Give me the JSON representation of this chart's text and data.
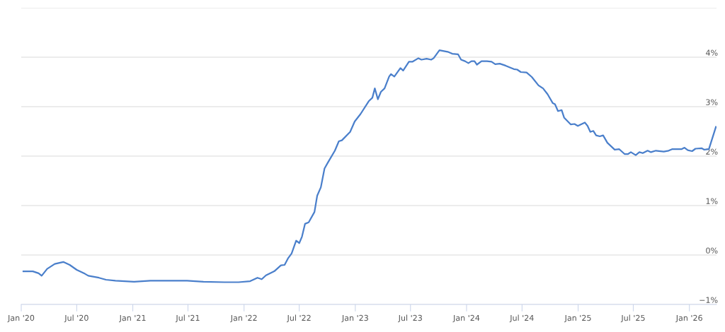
{
  "chart_data": {
    "type": "line",
    "xlim": [
      "2020-01-01",
      "2026-03-31"
    ],
    "ylim": [
      -1,
      5
    ],
    "xticks": [
      {
        "value": "2020-01-01",
        "label": "Jan '20"
      },
      {
        "value": "2020-07-01",
        "label": "Jul '20"
      },
      {
        "value": "2021-01-01",
        "label": "Jan '21"
      },
      {
        "value": "2021-07-01",
        "label": "Jul '21"
      },
      {
        "value": "2022-01-01",
        "label": "Jan '22"
      },
      {
        "value": "2022-07-01",
        "label": "Jul '22"
      },
      {
        "value": "2023-01-01",
        "label": "Jan '23"
      },
      {
        "value": "2023-07-01",
        "label": "Jul '23"
      },
      {
        "value": "2024-01-01",
        "label": "Jan '24"
      },
      {
        "value": "2024-07-01",
        "label": "Jul '24"
      },
      {
        "value": "2025-01-01",
        "label": "Jan '25"
      },
      {
        "value": "2025-07-01",
        "label": "Jul '25"
      },
      {
        "value": "2026-01-01",
        "label": "Jan '26"
      }
    ],
    "yticks": [
      {
        "value": -1,
        "label": "−1%"
      },
      {
        "value": 0,
        "label": "0%"
      },
      {
        "value": 1,
        "label": "1%"
      },
      {
        "value": 2,
        "label": "2%"
      },
      {
        "value": 3,
        "label": "3%"
      },
      {
        "value": 4,
        "label": "4%"
      },
      {
        "value": 5,
        "label": null
      }
    ],
    "grid": "y",
    "marker": "none",
    "line_style": "solid",
    "series": [
      {
        "color": "#4a7fcb",
        "x": [
          "2020-01-08",
          "2020-02-08",
          "2020-02-27",
          "2020-03-08",
          "2020-03-26",
          "2020-04-20",
          "2020-05-18",
          "2020-06-08",
          "2020-07-01",
          "2020-07-28",
          "2020-08-08",
          "2020-09-12",
          "2020-10-05",
          "2020-11-05",
          "2021-01-05",
          "2021-02-28",
          "2021-05-12",
          "2021-06-28",
          "2021-08-21",
          "2021-10-29",
          "2021-12-14",
          "2022-01-21",
          "2022-02-14",
          "2022-02-28",
          "2022-03-14",
          "2022-04-10",
          "2022-05-02",
          "2022-05-14",
          "2022-05-25",
          "2022-06-06",
          "2022-06-21",
          "2022-07-01",
          "2022-07-10",
          "2022-07-20",
          "2022-08-01",
          "2022-08-20",
          "2022-08-29",
          "2022-09-10",
          "2022-09-22",
          "2022-10-03",
          "2022-10-26",
          "2022-11-08",
          "2022-11-18",
          "2022-12-15",
          "2022-12-30",
          "2023-01-18",
          "2023-02-14",
          "2023-02-26",
          "2023-03-06",
          "2023-03-16",
          "2023-03-26",
          "2023-04-07",
          "2023-04-22",
          "2023-04-28",
          "2023-05-09",
          "2023-05-29",
          "2023-06-07",
          "2023-06-26",
          "2023-07-08",
          "2023-07-27",
          "2023-08-06",
          "2023-08-23",
          "2023-09-07",
          "2023-09-15",
          "2023-10-04",
          "2023-10-31",
          "2023-11-15",
          "2023-12-04",
          "2023-12-14",
          "2023-12-27",
          "2024-01-07",
          "2024-01-17",
          "2024-01-27",
          "2024-02-04",
          "2024-02-19",
          "2024-03-08",
          "2024-03-23",
          "2024-04-04",
          "2024-04-19",
          "2024-05-08",
          "2024-06-04",
          "2024-06-15",
          "2024-06-27",
          "2024-07-16",
          "2024-08-02",
          "2024-08-24",
          "2024-09-08",
          "2024-09-23",
          "2024-10-10",
          "2024-10-17",
          "2024-10-27",
          "2024-11-08",
          "2024-11-16",
          "2024-12-08",
          "2024-12-20",
          "2024-12-31",
          "2025-01-23",
          "2025-02-01",
          "2025-02-10",
          "2025-02-20",
          "2025-03-01",
          "2025-03-13",
          "2025-03-24",
          "2025-04-07",
          "2025-05-01",
          "2025-05-16",
          "2025-06-03",
          "2025-06-13",
          "2025-06-23",
          "2025-07-09",
          "2025-07-21",
          "2025-08-01",
          "2025-08-17",
          "2025-08-28",
          "2025-09-13",
          "2025-10-09",
          "2025-10-25",
          "2025-11-05",
          "2025-12-06",
          "2025-12-16",
          "2025-12-27",
          "2026-01-10",
          "2026-01-21",
          "2026-02-10",
          "2026-02-19",
          "2026-03-06",
          "2026-03-29"
        ],
        "values": [
          -0.33,
          -0.33,
          -0.37,
          -0.42,
          -0.28,
          -0.18,
          -0.14,
          -0.2,
          -0.3,
          -0.38,
          -0.42,
          -0.46,
          -0.5,
          -0.52,
          -0.54,
          -0.52,
          -0.52,
          -0.52,
          -0.54,
          -0.55,
          -0.55,
          -0.53,
          -0.46,
          -0.49,
          -0.41,
          -0.33,
          -0.21,
          -0.2,
          -0.07,
          0.03,
          0.29,
          0.24,
          0.37,
          0.63,
          0.66,
          0.87,
          1.2,
          1.37,
          1.75,
          1.87,
          2.11,
          2.3,
          2.32,
          2.49,
          2.7,
          2.85,
          3.11,
          3.18,
          3.37,
          3.15,
          3.3,
          3.37,
          3.61,
          3.66,
          3.61,
          3.78,
          3.73,
          3.91,
          3.91,
          3.98,
          3.95,
          3.97,
          3.95,
          3.98,
          4.14,
          4.11,
          4.07,
          4.06,
          3.95,
          3.92,
          3.88,
          3.92,
          3.92,
          3.85,
          3.92,
          3.92,
          3.91,
          3.86,
          3.87,
          3.83,
          3.76,
          3.75,
          3.7,
          3.69,
          3.6,
          3.43,
          3.37,
          3.25,
          3.07,
          3.05,
          2.91,
          2.93,
          2.78,
          2.64,
          2.65,
          2.61,
          2.68,
          2.61,
          2.49,
          2.51,
          2.42,
          2.4,
          2.42,
          2.27,
          2.13,
          2.14,
          2.04,
          2.04,
          2.08,
          2.02,
          2.08,
          2.06,
          2.11,
          2.08,
          2.11,
          2.09,
          2.11,
          2.14,
          2.14,
          2.17,
          2.12,
          2.1,
          2.15,
          2.16,
          2.13,
          2.14,
          2.59
        ]
      }
    ]
  }
}
